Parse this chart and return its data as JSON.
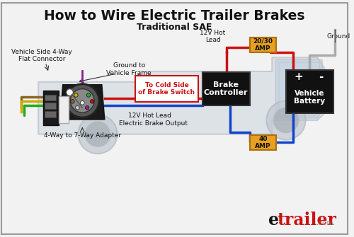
{
  "title": "How to Wire Electric Trailer Brakes",
  "subtitle": "Traditional SAE",
  "bg_color": "#f2f2f2",
  "title_color": "#111111",
  "subtitle_color": "#111111",
  "truck_color": "#d0d8e0",
  "truck_outline": "#b0b8c0",
  "wire_red": "#cc1111",
  "wire_blue": "#1144cc",
  "wire_green": "#22aa22",
  "wire_yellow": "#ccaa00",
  "wire_brown": "#886622",
  "wire_white": "#cccccc",
  "wire_purple": "#882288",
  "box_brake_ctrl": "#111111",
  "box_battery": "#111111",
  "box_amp_bg": "#e8a020",
  "box_amp_border": "#aa7010",
  "label_cold_color": "#cc1111",
  "label_cold_border": "#cc1111",
  "label_cold_bg": "#ffffff",
  "etrailer_e": "#111111",
  "etrailer_trailer": "#cc1111",
  "etrailer_com": "#888888",
  "annotations": {
    "vehicle_connector": "Vehicle Side 4-Way\nFlat Connector",
    "ground_frame": "Ground to\nVehicle Frame",
    "hot_lead_top": "12V Hot\nLead",
    "ground_label": "Ground",
    "brake_ctrl": "Brake\nController",
    "cold_side": "To Cold Side\nof Brake Switch",
    "hot_lead_bottom": "12V Hot Lead",
    "electric_brake": "Electric Brake Output",
    "adapter": "4-Way to 7-Way Adapter",
    "vehicle_battery": "Vehicle\nBattery",
    "amp_20_30": "20/30\nAMP",
    "amp_40": "40\nAMP"
  }
}
